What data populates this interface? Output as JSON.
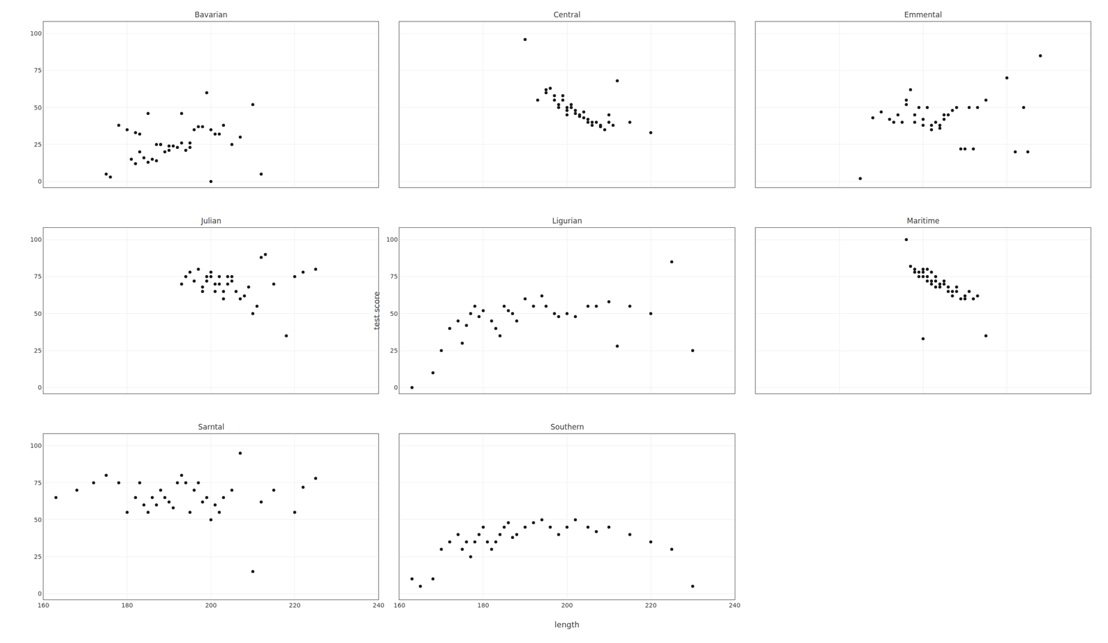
{
  "chart_data": [
    {
      "type": "scatter",
      "title": "Bavarian",
      "x": [
        175,
        176,
        178,
        180,
        181,
        182,
        182,
        183,
        183,
        184,
        185,
        185,
        186,
        187,
        187,
        188,
        188,
        189,
        190,
        190,
        191,
        192,
        193,
        193,
        194,
        195,
        195,
        196,
        197,
        198,
        199,
        200,
        200,
        201,
        202,
        203,
        205,
        207,
        210,
        212
      ],
      "values": [
        5,
        3,
        38,
        35,
        15,
        12,
        33,
        20,
        32,
        16,
        46,
        13,
        15,
        14,
        25,
        25,
        25,
        20,
        24,
        21,
        24,
        23,
        26,
        46,
        21,
        26,
        23,
        35,
        37,
        37,
        60,
        0,
        35,
        32,
        32,
        38,
        25,
        30,
        52,
        5
      ],
      "color": "#1a1a1a",
      "xlim": [
        160,
        240
      ],
      "ylim": [
        -4,
        108
      ],
      "xticks": [
        160,
        180,
        200,
        220,
        240
      ],
      "yticks": [
        0,
        25,
        50,
        75,
        100
      ],
      "grid": true,
      "tick_labels": "y"
    },
    {
      "type": "scatter",
      "title": "Central",
      "x": [
        190,
        193,
        195,
        195,
        196,
        197,
        197,
        198,
        198,
        199,
        199,
        200,
        200,
        200,
        201,
        201,
        202,
        202,
        203,
        203,
        204,
        204,
        205,
        205,
        206,
        206,
        207,
        208,
        208,
        209,
        210,
        210,
        211,
        212,
        215,
        220
      ],
      "values": [
        96,
        55,
        60,
        62,
        63,
        58,
        55,
        52,
        50,
        55,
        58,
        50,
        48,
        45,
        52,
        50,
        48,
        46,
        44,
        45,
        47,
        43,
        40,
        42,
        38,
        40,
        40,
        37,
        38,
        35,
        40,
        45,
        38,
        68,
        40,
        33
      ],
      "color": "#1a1a1a",
      "xlim": [
        160,
        240
      ],
      "ylim": [
        -4,
        108
      ],
      "xticks": [
        160,
        180,
        200,
        220,
        240
      ],
      "yticks": [
        0,
        25,
        50,
        75,
        100
      ],
      "grid": true,
      "tick_labels": false
    },
    {
      "type": "scatter",
      "title": "Emmental",
      "x": [
        185,
        188,
        190,
        192,
        193,
        194,
        195,
        196,
        196,
        197,
        198,
        198,
        199,
        200,
        200,
        201,
        202,
        202,
        203,
        204,
        204,
        205,
        205,
        206,
        207,
        208,
        209,
        210,
        211,
        212,
        213,
        215,
        220,
        222,
        224,
        225,
        228
      ],
      "values": [
        2,
        43,
        47,
        42,
        40,
        45,
        40,
        55,
        52,
        62,
        45,
        40,
        50,
        42,
        38,
        50,
        35,
        38,
        40,
        36,
        38,
        42,
        45,
        45,
        48,
        50,
        22,
        22,
        50,
        22,
        50,
        55,
        70,
        20,
        50,
        20,
        85
      ],
      "color": "#1a1a1a",
      "xlim": [
        160,
        240
      ],
      "ylim": [
        -4,
        108
      ],
      "xticks": [
        160,
        180,
        200,
        220,
        240
      ],
      "yticks": [
        0,
        25,
        50,
        75,
        100
      ],
      "grid": true,
      "tick_labels": false
    },
    {
      "type": "scatter",
      "title": "Julian",
      "x": [
        193,
        194,
        195,
        196,
        197,
        198,
        198,
        199,
        199,
        200,
        200,
        201,
        201,
        202,
        202,
        203,
        203,
        204,
        204,
        205,
        205,
        206,
        207,
        208,
        209,
        210,
        211,
        212,
        213,
        215,
        218,
        220,
        222,
        225
      ],
      "values": [
        70,
        75,
        78,
        72,
        80,
        65,
        68,
        75,
        72,
        78,
        75,
        70,
        65,
        75,
        70,
        65,
        60,
        70,
        75,
        75,
        72,
        65,
        60,
        62,
        68,
        50,
        55,
        88,
        90,
        70,
        35,
        75,
        78,
        80
      ],
      "color": "#1a1a1a",
      "xlim": [
        160,
        240
      ],
      "ylim": [
        -4,
        108
      ],
      "xticks": [
        160,
        180,
        200,
        220,
        240
      ],
      "yticks": [
        0,
        25,
        50,
        75,
        100
      ],
      "grid": true,
      "tick_labels": "y"
    },
    {
      "type": "scatter",
      "title": "Ligurian",
      "ylabel": "test score",
      "x": [
        163,
        168,
        170,
        172,
        174,
        175,
        176,
        177,
        178,
        179,
        180,
        182,
        183,
        184,
        185,
        186,
        187,
        188,
        190,
        192,
        194,
        195,
        197,
        198,
        200,
        202,
        205,
        207,
        210,
        212,
        215,
        220,
        225,
        230
      ],
      "values": [
        0,
        10,
        25,
        40,
        45,
        30,
        42,
        50,
        55,
        48,
        52,
        45,
        40,
        35,
        55,
        52,
        50,
        45,
        60,
        55,
        62,
        55,
        50,
        48,
        50,
        48,
        55,
        55,
        58,
        28,
        55,
        50,
        85,
        25
      ],
      "color": "#1a1a1a",
      "xlim": [
        160,
        240
      ],
      "ylim": [
        -4,
        108
      ],
      "xticks": [
        160,
        180,
        200,
        220,
        240
      ],
      "yticks": [
        0,
        25,
        50,
        75,
        100
      ],
      "grid": true,
      "tick_labels": "y"
    },
    {
      "type": "scatter",
      "title": "Maritime",
      "x": [
        196,
        197,
        198,
        198,
        199,
        199,
        200,
        200,
        200,
        201,
        201,
        201,
        202,
        202,
        202,
        203,
        203,
        203,
        204,
        204,
        205,
        205,
        206,
        206,
        207,
        207,
        208,
        208,
        209,
        210,
        210,
        211,
        212,
        213,
        215,
        200
      ],
      "values": [
        100,
        82,
        80,
        78,
        78,
        75,
        80,
        78,
        75,
        72,
        75,
        80,
        78,
        72,
        70,
        75,
        72,
        68,
        68,
        70,
        72,
        70,
        65,
        68,
        62,
        65,
        65,
        68,
        60,
        60,
        62,
        65,
        60,
        62,
        35,
        33
      ],
      "color": "#1a1a1a",
      "xlim": [
        160,
        240
      ],
      "ylim": [
        -4,
        108
      ],
      "xticks": [
        160,
        180,
        200,
        220,
        240
      ],
      "yticks": [
        0,
        25,
        50,
        75,
        100
      ],
      "grid": true,
      "tick_labels": false
    },
    {
      "type": "scatter",
      "title": "Sarntal",
      "x": [
        163,
        168,
        172,
        175,
        178,
        180,
        182,
        183,
        184,
        185,
        186,
        187,
        188,
        189,
        190,
        191,
        192,
        193,
        194,
        195,
        196,
        197,
        198,
        199,
        200,
        201,
        202,
        203,
        205,
        207,
        210,
        212,
        215,
        220,
        222,
        225
      ],
      "values": [
        65,
        70,
        75,
        80,
        75,
        55,
        65,
        75,
        60,
        55,
        65,
        60,
        70,
        65,
        62,
        58,
        75,
        80,
        75,
        55,
        70,
        75,
        62,
        65,
        50,
        60,
        55,
        65,
        70,
        95,
        15,
        62,
        70,
        55,
        72,
        78
      ],
      "color": "#1a1a1a",
      "xlim": [
        160,
        240
      ],
      "ylim": [
        -4,
        108
      ],
      "xticks": [
        160,
        180,
        200,
        220,
        240
      ],
      "yticks": [
        0,
        25,
        50,
        75,
        100
      ],
      "grid": true,
      "tick_labels": true
    },
    {
      "type": "scatter",
      "title": "Southern",
      "xlabel": "length",
      "x": [
        163,
        165,
        168,
        170,
        172,
        174,
        175,
        176,
        177,
        178,
        179,
        180,
        181,
        182,
        183,
        184,
        185,
        186,
        187,
        188,
        190,
        192,
        194,
        196,
        198,
        200,
        202,
        205,
        207,
        210,
        215,
        220,
        225,
        230
      ],
      "values": [
        10,
        5,
        10,
        30,
        35,
        40,
        30,
        35,
        25,
        35,
        40,
        45,
        35,
        30,
        35,
        40,
        45,
        48,
        38,
        40,
        45,
        48,
        50,
        45,
        40,
        45,
        50,
        45,
        42,
        45,
        40,
        35,
        30,
        5
      ],
      "color": "#1a1a1a",
      "xlim": [
        160,
        240
      ],
      "ylim": [
        -4,
        108
      ],
      "xticks": [
        160,
        180,
        200,
        220,
        240
      ],
      "yticks": [
        0,
        25,
        50,
        75,
        100
      ],
      "grid": true,
      "tick_labels": "x"
    }
  ]
}
